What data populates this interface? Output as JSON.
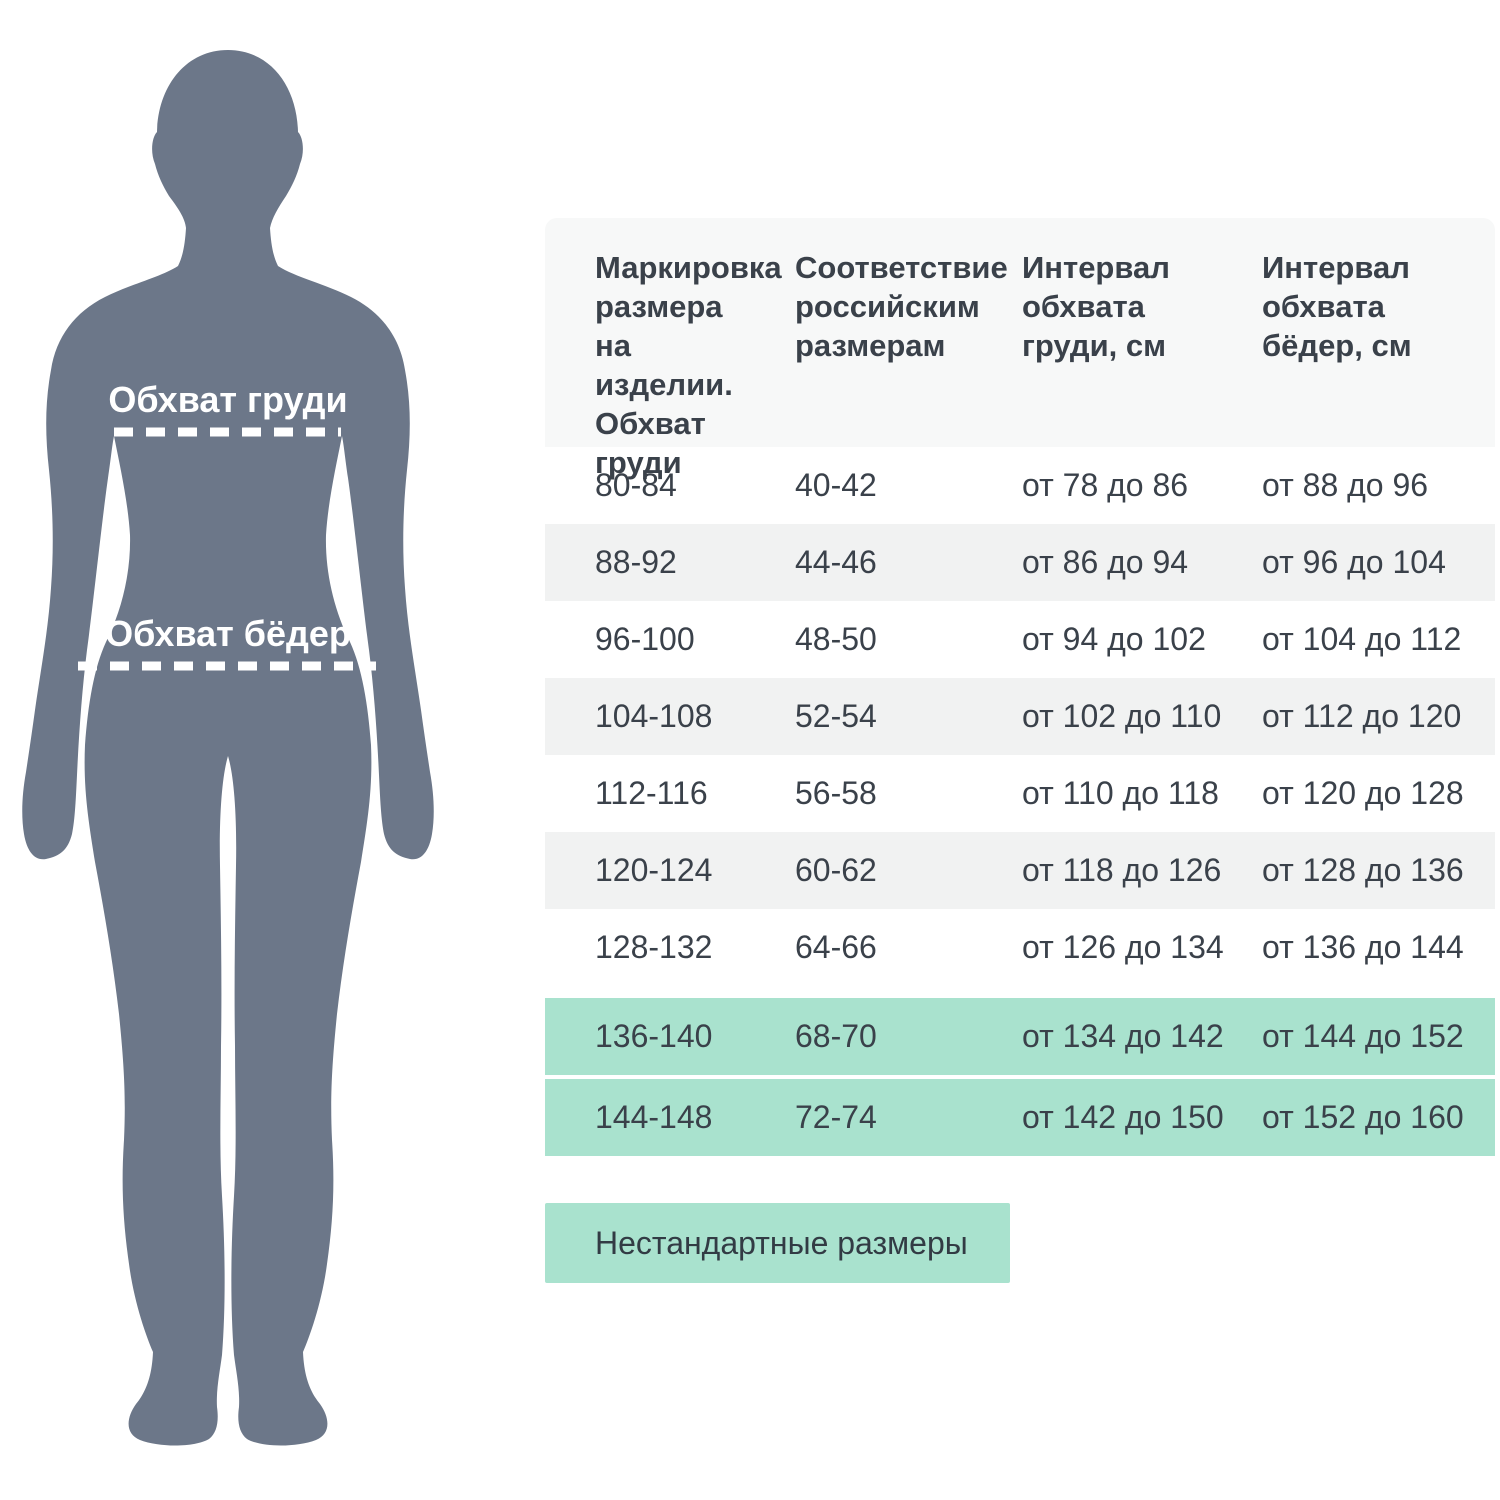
{
  "figure": {
    "chest_label": "Обхват груди",
    "hips_label": "Обхват бёдер",
    "silhouette_color": "#6c7789"
  },
  "table": {
    "headers": [
      "Маркировка\nразмера\nна изделии.\nОбхват\nгруди",
      "Соответствие\nроссийским\nразмерам",
      "Интервал\nобхвата\nгруди, см",
      "Интервал\nобхвата\nбёдер, см"
    ],
    "rows": [
      {
        "marking": "80-84",
        "russian": "40-42",
        "chest": "от 78 до 86",
        "hips": "от 88 до 96",
        "highlight": false
      },
      {
        "marking": "88-92",
        "russian": "44-46",
        "chest": "от 86 до 94",
        "hips": "от 96 до 104",
        "highlight": false
      },
      {
        "marking": "96-100",
        "russian": "48-50",
        "chest": "от 94 до 102",
        "hips": "от 104 до 112",
        "highlight": false
      },
      {
        "marking": "104-108",
        "russian": "52-54",
        "chest": "от 102 до 110",
        "hips": "от 112 до 120",
        "highlight": false
      },
      {
        "marking": "112-116",
        "russian": "56-58",
        "chest": "от 110 до 118",
        "hips": "от 120 до 128",
        "highlight": false
      },
      {
        "marking": "120-124",
        "russian": "60-62",
        "chest": "от 118 до 126",
        "hips": "от 128 до 136",
        "highlight": false
      },
      {
        "marking": "128-132",
        "russian": "64-66",
        "chest": "от 126 до 134",
        "hips": "от 136 до 144",
        "highlight": false
      },
      {
        "marking": "136-140",
        "russian": "68-70",
        "chest": "от 134 до 142",
        "hips": "от 144 до 152",
        "highlight": true
      },
      {
        "marking": "144-148",
        "russian": "72-74",
        "chest": "от 142 до 150",
        "hips": "от 152 до 160",
        "highlight": true
      }
    ],
    "legend": "Нестандартные размеры"
  },
  "colors": {
    "silhouette": "#6c7789",
    "row_alt": "#f1f2f2",
    "highlight_mint": "#a9e2ce",
    "header_bg": "#f7f8f8",
    "text_dark": "#3a414a",
    "annotation_white": "#ffffff"
  },
  "chart_data": {
    "type": "table",
    "title": "",
    "columns": [
      "Маркировка размера на изделии. Обхват груди",
      "Соответствие российским размерам",
      "Интервал обхвата груди, см",
      "Интервал обхвата бёдер, см"
    ],
    "rows": [
      [
        "80-84",
        "40-42",
        "от 78 до 86",
        "от 88 до 96"
      ],
      [
        "88-92",
        "44-46",
        "от 86 до 94",
        "от 96 до 104"
      ],
      [
        "96-100",
        "48-50",
        "от 94 до 102",
        "от 104 до 112"
      ],
      [
        "104-108",
        "52-54",
        "от 102 до 110",
        "от 112 до 120"
      ],
      [
        "112-116",
        "56-58",
        "от 110 до 118",
        "от 120 до 128"
      ],
      [
        "120-124",
        "60-62",
        "от 118 до 126",
        "от 128 до 136"
      ],
      [
        "128-132",
        "64-66",
        "от 126 до 134",
        "от 136 до 144"
      ],
      [
        "136-140",
        "68-70",
        "от 134 до 142",
        "от 144 до 152"
      ],
      [
        "144-148",
        "72-74",
        "от 142 до 150",
        "от 152 до 160"
      ]
    ],
    "highlighted_rows": [
      7,
      8
    ],
    "legend": "Нестандартные размеры"
  }
}
